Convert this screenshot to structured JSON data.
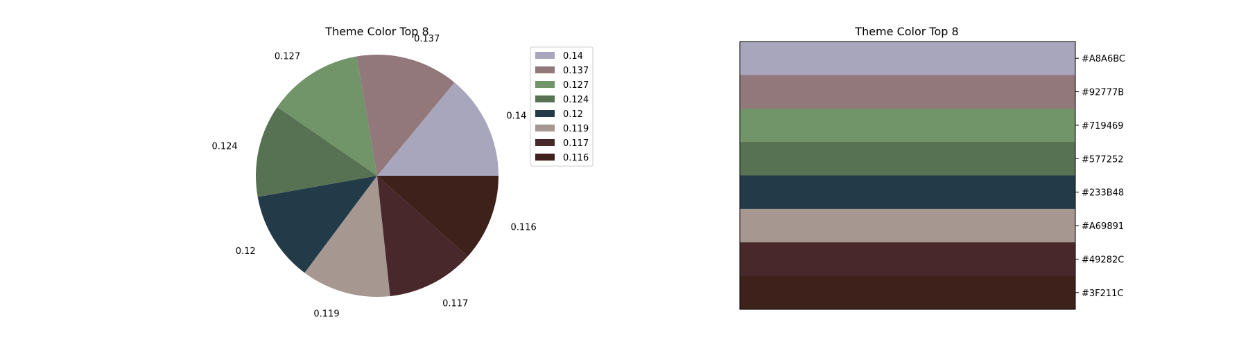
{
  "chart_data": [
    {
      "type": "pie",
      "title": "Theme Color Top 8",
      "categories": [
        "0.14",
        "0.137",
        "0.127",
        "0.124",
        "0.12",
        "0.119",
        "0.117",
        "0.116"
      ],
      "values": [
        0.14,
        0.137,
        0.127,
        0.124,
        0.12,
        0.119,
        0.117,
        0.116
      ],
      "colors": [
        "#A8A6BC",
        "#92777B",
        "#719469",
        "#577252",
        "#233B48",
        "#A69891",
        "#49282C",
        "#3F211C"
      ],
      "legend": {
        "position": "right",
        "entries": [
          "0.14",
          "0.137",
          "0.127",
          "0.124",
          "0.12",
          "0.119",
          "0.117",
          "0.116"
        ]
      }
    },
    {
      "type": "table",
      "title": "Theme Color Top 8",
      "rows": [
        "#A8A6BC",
        "#92777B",
        "#719469",
        "#577252",
        "#233B48",
        "#A69891",
        "#49282C",
        "#3F211C"
      ],
      "colors": [
        "#A8A6BC",
        "#92777B",
        "#719469",
        "#577252",
        "#233B48",
        "#A69891",
        "#49282C",
        "#3F211C"
      ],
      "tick_side": "right"
    }
  ]
}
